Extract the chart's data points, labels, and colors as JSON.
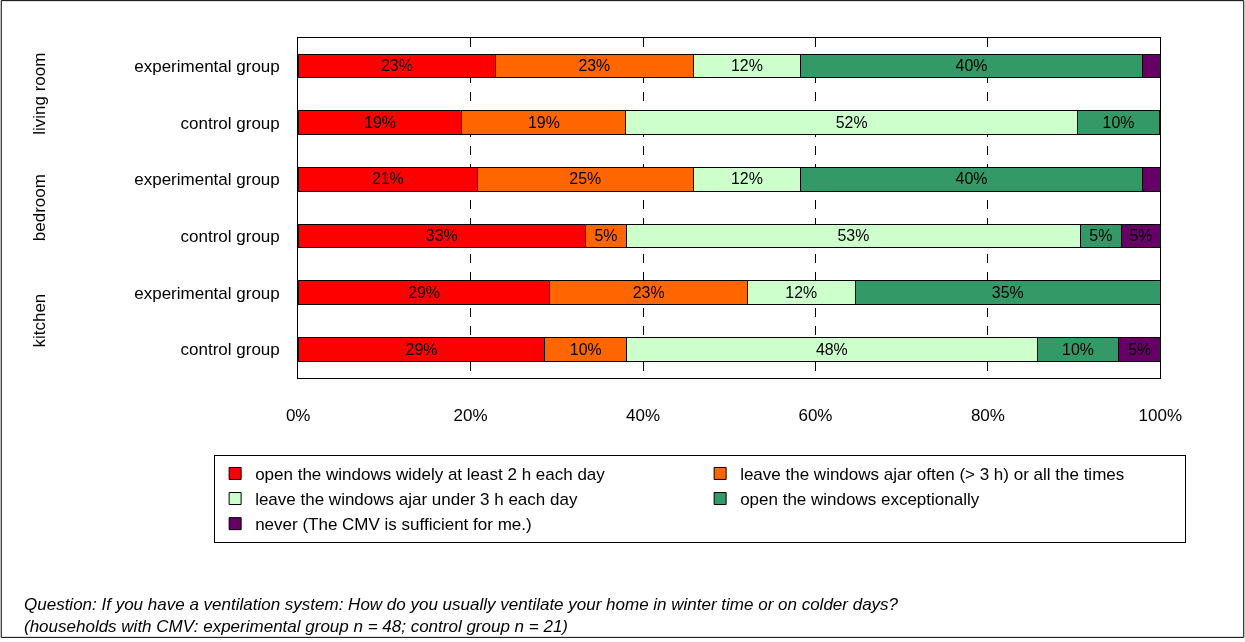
{
  "chart_data": {
    "type": "bar",
    "orientation": "horizontal",
    "stacked": true,
    "categories": [
      "experimental group",
      "control group",
      "experimental group",
      "control group",
      "experimental group",
      "control group"
    ],
    "series": [
      {
        "name": "open the windows widely at least 2 h each day",
        "color": "#ff0000",
        "values": [
          22.9,
          19.0,
          20.8,
          33.3,
          29.2,
          28.6
        ],
        "value_labels": [
          "23%",
          "19%",
          "21%",
          "33%",
          "29%",
          "29%"
        ]
      },
      {
        "name": "leave the windows ajar often (> 3 h) or all the times",
        "color": "#ff6600",
        "values": [
          22.9,
          19.0,
          25.0,
          4.8,
          22.9,
          9.5
        ],
        "value_labels": [
          "23%",
          "19%",
          "25%",
          "5%",
          "23%",
          "10%"
        ]
      },
      {
        "name": "leave the windows ajar under 3 h each day",
        "color": "#ccffcc",
        "values": [
          12.5,
          52.4,
          12.5,
          52.6,
          12.5,
          47.6
        ],
        "value_labels": [
          "12%",
          "52%",
          "12%",
          "53%",
          "12%",
          "48%"
        ]
      },
      {
        "name": "open the windows exceptionally",
        "color": "#339966",
        "values": [
          39.6,
          9.5,
          39.6,
          4.8,
          35.4,
          9.5
        ],
        "value_labels": [
          "40%",
          "10%",
          "40%",
          "5%",
          "35%",
          "10%"
        ]
      },
      {
        "name": "never (The CMV is sufficient for me.)",
        "color": "#660066",
        "values": [
          2.1,
          null,
          2.1,
          4.5,
          null,
          4.8
        ],
        "value_labels": [
          null,
          null,
          null,
          "5%",
          null,
          "5%"
        ]
      }
    ],
    "xlim": [
      0,
      100
    ],
    "xticks": [
      {
        "value": 0,
        "label": "0%"
      },
      {
        "value": 20,
        "label": "20%"
      },
      {
        "value": 40,
        "label": "40%"
      },
      {
        "value": 60,
        "label": "60%"
      },
      {
        "value": 80,
        "label": "80%"
      },
      {
        "value": 100,
        "label": "100%"
      }
    ],
    "grid": "x",
    "legend": "bottom",
    "annotations": [
      "living room",
      "bedroom",
      "kitchen",
      "Question: If you have a ventilation system: How do you usually ventilate your home in winter time or on colder days? (households with CMV: experimental group n = 48; control group n = 21)"
    ]
  }
}
